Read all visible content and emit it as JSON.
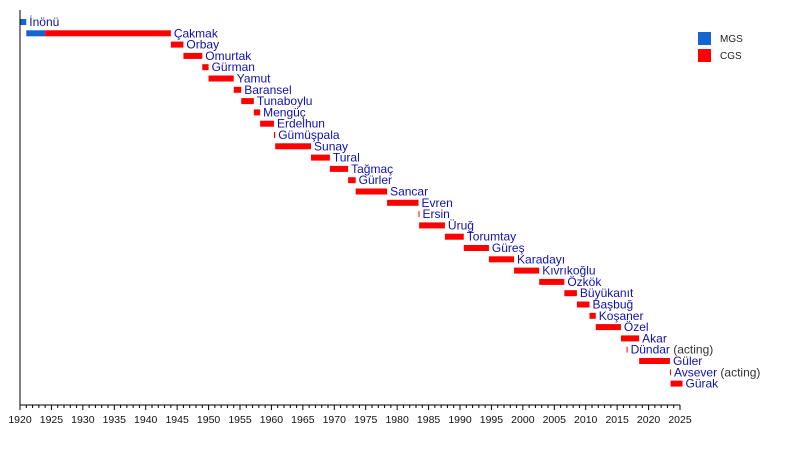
{
  "chart_data": {
    "type": "timeline",
    "xlim": [
      1920,
      2025
    ],
    "x_ticks": [
      1920,
      1925,
      1930,
      1935,
      1940,
      1945,
      1950,
      1955,
      1960,
      1965,
      1970,
      1975,
      1980,
      1985,
      1990,
      1995,
      2000,
      2005,
      2010,
      2015,
      2020,
      2025
    ],
    "legend": {
      "position": "top-right",
      "entries": [
        {
          "name": "MGS",
          "color": "#1565d0"
        },
        {
          "name": "CGS",
          "color": "#ff0000"
        }
      ]
    },
    "rows": [
      {
        "name": "İnönü",
        "note": "",
        "segments": [
          {
            "role": "MGS",
            "start": 1920,
            "end": 1921
          }
        ]
      },
      {
        "name": "Çakmak",
        "note": "",
        "segments": [
          {
            "role": "MGS",
            "start": 1921,
            "end": 1924
          },
          {
            "role": "CGS",
            "start": 1924,
            "end": 1944
          }
        ]
      },
      {
        "name": "Orbay",
        "note": "",
        "segments": [
          {
            "role": "CGS",
            "start": 1944,
            "end": 1946
          }
        ]
      },
      {
        "name": "Omurtak",
        "note": "",
        "segments": [
          {
            "role": "CGS",
            "start": 1946,
            "end": 1949
          }
        ]
      },
      {
        "name": "Gürman",
        "note": "",
        "segments": [
          {
            "role": "CGS",
            "start": 1949,
            "end": 1950
          }
        ]
      },
      {
        "name": "Yamut",
        "note": "",
        "segments": [
          {
            "role": "CGS",
            "start": 1950,
            "end": 1954
          }
        ]
      },
      {
        "name": "Baransel",
        "note": "",
        "segments": [
          {
            "role": "CGS",
            "start": 1954,
            "end": 1955.2
          }
        ]
      },
      {
        "name": "Tunaboylu",
        "note": "",
        "segments": [
          {
            "role": "CGS",
            "start": 1955.2,
            "end": 1957.2
          }
        ]
      },
      {
        "name": "Mengüç",
        "note": "",
        "segments": [
          {
            "role": "CGS",
            "start": 1957.2,
            "end": 1958.2
          }
        ]
      },
      {
        "name": "Erdelhun",
        "note": "",
        "segments": [
          {
            "role": "CGS",
            "start": 1958.2,
            "end": 1960.4
          }
        ]
      },
      {
        "name": "Gümüşpala",
        "note": "",
        "segments": [
          {
            "role": "CGS",
            "start": 1960.4,
            "end": 1960.6
          }
        ]
      },
      {
        "name": "Sunay",
        "note": "",
        "segments": [
          {
            "role": "CGS",
            "start": 1960.6,
            "end": 1966.3
          }
        ]
      },
      {
        "name": "Tural",
        "note": "",
        "segments": [
          {
            "role": "CGS",
            "start": 1966.3,
            "end": 1969.3
          }
        ]
      },
      {
        "name": "Tağmaç",
        "note": "",
        "segments": [
          {
            "role": "CGS",
            "start": 1969.3,
            "end": 1972.2
          }
        ]
      },
      {
        "name": "Gürler",
        "note": "",
        "segments": [
          {
            "role": "CGS",
            "start": 1972.2,
            "end": 1973.4
          }
        ]
      },
      {
        "name": "Sancar",
        "note": "",
        "segments": [
          {
            "role": "CGS",
            "start": 1973.4,
            "end": 1978.4
          }
        ]
      },
      {
        "name": "Evren",
        "note": "",
        "segments": [
          {
            "role": "CGS",
            "start": 1978.4,
            "end": 1983.4
          }
        ]
      },
      {
        "name": "Ersin",
        "note": "",
        "segments": [
          {
            "role": "CGS",
            "start": 1983.4,
            "end": 1983.5
          }
        ]
      },
      {
        "name": "Üruğ",
        "note": "",
        "segments": [
          {
            "role": "CGS",
            "start": 1983.5,
            "end": 1987.6
          }
        ]
      },
      {
        "name": "Torumtay",
        "note": "",
        "segments": [
          {
            "role": "CGS",
            "start": 1987.6,
            "end": 1990.6
          }
        ]
      },
      {
        "name": "Güreş",
        "note": "",
        "segments": [
          {
            "role": "CGS",
            "start": 1990.6,
            "end": 1994.6
          }
        ]
      },
      {
        "name": "Karadayı",
        "note": "",
        "segments": [
          {
            "role": "CGS",
            "start": 1994.6,
            "end": 1998.6
          }
        ]
      },
      {
        "name": "Kıvrıkoğlu",
        "note": "",
        "segments": [
          {
            "role": "CGS",
            "start": 1998.6,
            "end": 2002.6
          }
        ]
      },
      {
        "name": "Özkök",
        "note": "",
        "segments": [
          {
            "role": "CGS",
            "start": 2002.6,
            "end": 2006.6
          }
        ]
      },
      {
        "name": "Büyükanıt",
        "note": "",
        "segments": [
          {
            "role": "CGS",
            "start": 2006.6,
            "end": 2008.6
          }
        ]
      },
      {
        "name": "Başbuğ",
        "note": "",
        "segments": [
          {
            "role": "CGS",
            "start": 2008.6,
            "end": 2010.6
          }
        ]
      },
      {
        "name": "Koşaner",
        "note": "",
        "segments": [
          {
            "role": "CGS",
            "start": 2010.6,
            "end": 2011.6
          }
        ]
      },
      {
        "name": "Özel",
        "note": "",
        "segments": [
          {
            "role": "CGS",
            "start": 2011.6,
            "end": 2015.6
          }
        ]
      },
      {
        "name": "Akar",
        "note": "",
        "segments": [
          {
            "role": "CGS",
            "start": 2015.6,
            "end": 2018.5
          }
        ]
      },
      {
        "name": "Dündar",
        "note": "(acting)",
        "segments": [
          {
            "role": "CGS",
            "start": 2016.5,
            "end": 2016.6
          }
        ]
      },
      {
        "name": "Güler",
        "note": "",
        "segments": [
          {
            "role": "CGS",
            "start": 2018.5,
            "end": 2023.4
          }
        ]
      },
      {
        "name": "Avsever",
        "note": "(acting)",
        "segments": [
          {
            "role": "CGS",
            "start": 2023.4,
            "end": 2023.5
          }
        ]
      },
      {
        "name": "Gürak",
        "note": "",
        "segments": [
          {
            "role": "CGS",
            "start": 2023.5,
            "end": 2025.4
          }
        ]
      }
    ]
  }
}
